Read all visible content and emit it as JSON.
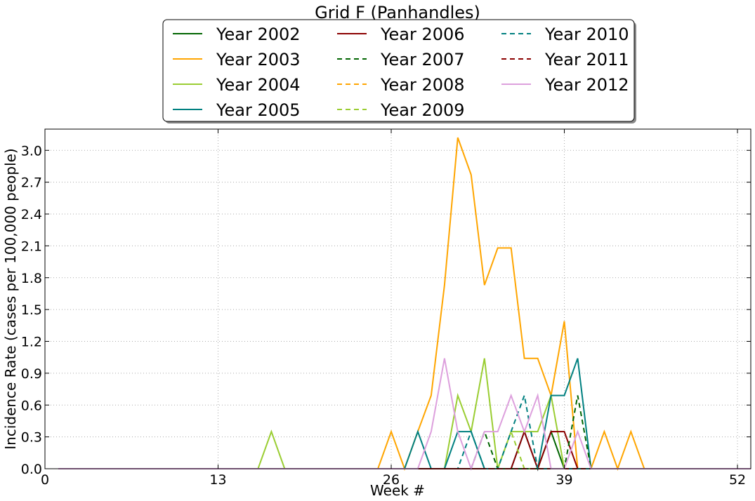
{
  "chart_data": {
    "type": "line",
    "title": "Grid F (Panhandles)",
    "xlabel": "Week #",
    "ylabel": "Incidence Rate (cases per 100,000 people)",
    "xlim": [
      0,
      53
    ],
    "ylim": [
      0,
      3.2
    ],
    "xticks": [
      0,
      13,
      26,
      39,
      52
    ],
    "yticks": [
      0.0,
      0.3,
      0.6,
      0.9,
      1.2,
      1.5,
      1.8,
      2.1,
      2.4,
      2.7,
      3.0
    ],
    "ytick_labels": [
      "0.0",
      "0.3",
      "0.6",
      "0.9",
      "1.2",
      "1.5",
      "1.8",
      "2.1",
      "2.4",
      "2.7",
      "3.0"
    ],
    "grid": true,
    "legend_position": "top-center, above plot",
    "x": [
      1,
      2,
      3,
      4,
      5,
      6,
      7,
      8,
      9,
      10,
      11,
      12,
      13,
      14,
      15,
      16,
      17,
      18,
      19,
      20,
      21,
      22,
      23,
      24,
      25,
      26,
      27,
      28,
      29,
      30,
      31,
      32,
      33,
      34,
      35,
      36,
      37,
      38,
      39,
      40,
      41,
      42,
      43,
      44,
      45,
      46,
      47,
      48,
      49,
      50,
      51,
      52,
      53
    ],
    "series": [
      {
        "name": "Year 2002",
        "color": "#006400",
        "dash": "solid",
        "values": [
          0,
          0,
          0,
          0,
          0,
          0,
          0,
          0,
          0,
          0,
          0,
          0,
          0,
          0,
          0,
          0,
          0,
          0,
          0,
          0,
          0,
          0,
          0,
          0,
          0,
          0,
          0,
          0,
          0,
          0,
          0,
          0,
          0,
          0,
          0,
          0,
          0,
          0.35,
          0,
          0,
          0,
          0,
          0,
          0,
          0,
          0,
          0,
          0,
          0,
          0,
          0,
          0,
          0
        ]
      },
      {
        "name": "Year 2003",
        "color": "#FFA500",
        "dash": "solid",
        "values": [
          0,
          0,
          0,
          0,
          0,
          0,
          0,
          0,
          0,
          0,
          0,
          0,
          0,
          0,
          0,
          0,
          0,
          0,
          0,
          0,
          0,
          0,
          0,
          0,
          0,
          0.35,
          0,
          0.35,
          0.69,
          1.73,
          3.12,
          2.77,
          1.73,
          2.08,
          2.08,
          1.04,
          1.04,
          0.69,
          1.39,
          0,
          0,
          0.35,
          0,
          0.35,
          0,
          0,
          0,
          0,
          0,
          0,
          0,
          0,
          0
        ]
      },
      {
        "name": "Year 2004",
        "color": "#9ACD32",
        "dash": "solid",
        "values": [
          0,
          0,
          0,
          0,
          0,
          0,
          0,
          0,
          0,
          0,
          0,
          0,
          0,
          0,
          0,
          0,
          0.35,
          0,
          0,
          0,
          0,
          0,
          0,
          0,
          0,
          0,
          0,
          0,
          0,
          0,
          0.69,
          0.35,
          1.04,
          0,
          0.35,
          0.35,
          0.35,
          0.69,
          0,
          0,
          0,
          0,
          0,
          0,
          0,
          0,
          0,
          0,
          0,
          0,
          0,
          0,
          0
        ]
      },
      {
        "name": "Year 2005",
        "color": "#008080",
        "dash": "solid",
        "values": [
          0,
          0,
          0,
          0,
          0,
          0,
          0,
          0,
          0,
          0,
          0,
          0,
          0,
          0,
          0,
          0,
          0,
          0,
          0,
          0,
          0,
          0,
          0,
          0,
          0,
          0,
          0,
          0.35,
          0,
          0,
          0.35,
          0.35,
          0,
          0,
          0,
          0.35,
          0,
          0.69,
          0.69,
          1.04,
          0,
          0,
          0,
          0,
          0,
          0,
          0,
          0,
          0,
          0,
          0,
          0,
          0
        ]
      },
      {
        "name": "Year 2006",
        "color": "#8B0000",
        "dash": "solid",
        "values": [
          0,
          0,
          0,
          0,
          0,
          0,
          0,
          0,
          0,
          0,
          0,
          0,
          0,
          0,
          0,
          0,
          0,
          0,
          0,
          0,
          0,
          0,
          0,
          0,
          0,
          0,
          0,
          0,
          0,
          0,
          0,
          0,
          0,
          0,
          0,
          0.35,
          0,
          0.35,
          0.35,
          0,
          0,
          0,
          0,
          0,
          0,
          0,
          0,
          0,
          0,
          0,
          0,
          0,
          0
        ]
      },
      {
        "name": "Year 2007",
        "color": "#006400",
        "dash": "dashed",
        "values": [
          0,
          0,
          0,
          0,
          0,
          0,
          0,
          0,
          0,
          0,
          0,
          0,
          0,
          0,
          0,
          0,
          0,
          0,
          0,
          0,
          0,
          0,
          0,
          0,
          0,
          0,
          0,
          0,
          0,
          0,
          0,
          0,
          0.35,
          0,
          0,
          0,
          0,
          0,
          0,
          0.69,
          0,
          0,
          0,
          0,
          0,
          0,
          0,
          0,
          0,
          0,
          0,
          0,
          0
        ]
      },
      {
        "name": "Year 2008",
        "color": "#FFA500",
        "dash": "dashed",
        "values": [
          0,
          0,
          0,
          0,
          0,
          0,
          0,
          0,
          0,
          0,
          0,
          0,
          0,
          0,
          0,
          0,
          0,
          0,
          0,
          0,
          0,
          0,
          0,
          0,
          0,
          0,
          0,
          0,
          0,
          0,
          0,
          0,
          0,
          0,
          0,
          0,
          0,
          0,
          0,
          0,
          0,
          0,
          0,
          0,
          0,
          0,
          0,
          0,
          0,
          0,
          0,
          0,
          0
        ]
      },
      {
        "name": "Year 2009",
        "color": "#9ACD32",
        "dash": "dashed",
        "values": [
          0,
          0,
          0,
          0,
          0,
          0,
          0,
          0,
          0,
          0,
          0,
          0,
          0,
          0,
          0,
          0,
          0,
          0,
          0,
          0,
          0,
          0,
          0,
          0,
          0,
          0,
          0,
          0,
          0,
          0,
          0,
          0,
          0,
          0,
          0.35,
          0,
          0,
          0,
          0,
          0,
          0,
          0,
          0,
          0,
          0,
          0,
          0,
          0,
          0,
          0,
          0,
          0,
          0
        ]
      },
      {
        "name": "Year 2010",
        "color": "#008080",
        "dash": "dashed",
        "values": [
          0,
          0,
          0,
          0,
          0,
          0,
          0,
          0,
          0,
          0,
          0,
          0,
          0,
          0,
          0,
          0,
          0,
          0,
          0,
          0,
          0,
          0,
          0,
          0,
          0,
          0,
          0,
          0,
          0,
          0,
          0,
          0.35,
          0,
          0,
          0.35,
          0.69,
          0,
          0,
          0,
          0,
          0,
          0,
          0,
          0,
          0,
          0,
          0,
          0,
          0,
          0,
          0,
          0,
          0
        ]
      },
      {
        "name": "Year 2011",
        "color": "#8B0000",
        "dash": "dashed",
        "values": [
          0,
          0,
          0,
          0,
          0,
          0,
          0,
          0,
          0,
          0,
          0,
          0,
          0,
          0,
          0,
          0,
          0,
          0,
          0,
          0,
          0,
          0,
          0,
          0,
          0,
          0,
          0,
          0,
          0,
          0,
          0,
          0,
          0,
          0,
          0,
          0,
          0,
          0,
          0,
          0,
          0,
          0,
          0,
          0,
          0,
          0,
          0,
          0,
          0,
          0,
          0,
          0,
          0
        ]
      },
      {
        "name": "Year 2012",
        "color": "#DDA0DD",
        "dash": "solid",
        "values": [
          0,
          0,
          0,
          0,
          0,
          0,
          0,
          0,
          0,
          0,
          0,
          0,
          0,
          0,
          0,
          0,
          0,
          0,
          0,
          0,
          0,
          0,
          0,
          0,
          0,
          0,
          0,
          0,
          0.35,
          1.04,
          0.35,
          0,
          0.35,
          0.35,
          0.69,
          0.35,
          0.69,
          0,
          0,
          0.35,
          0,
          0,
          0,
          0,
          0,
          0,
          0,
          0,
          0,
          0,
          0,
          0,
          0
        ]
      }
    ]
  }
}
